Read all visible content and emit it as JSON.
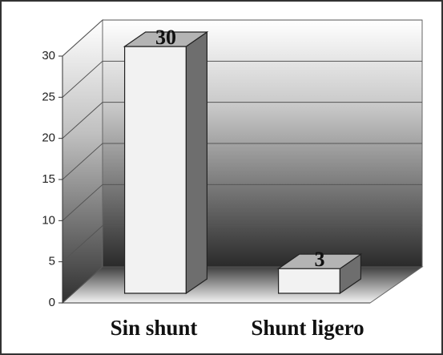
{
  "chart_data": {
    "type": "bar",
    "categories": [
      "Sin shunt",
      "Shunt ligero"
    ],
    "values": [
      30,
      3
    ],
    "color": "#f2f2f2",
    "ylim": [
      0,
      30
    ],
    "yticks": [
      0,
      5,
      10,
      15,
      20,
      25,
      30
    ],
    "grid": true
  }
}
